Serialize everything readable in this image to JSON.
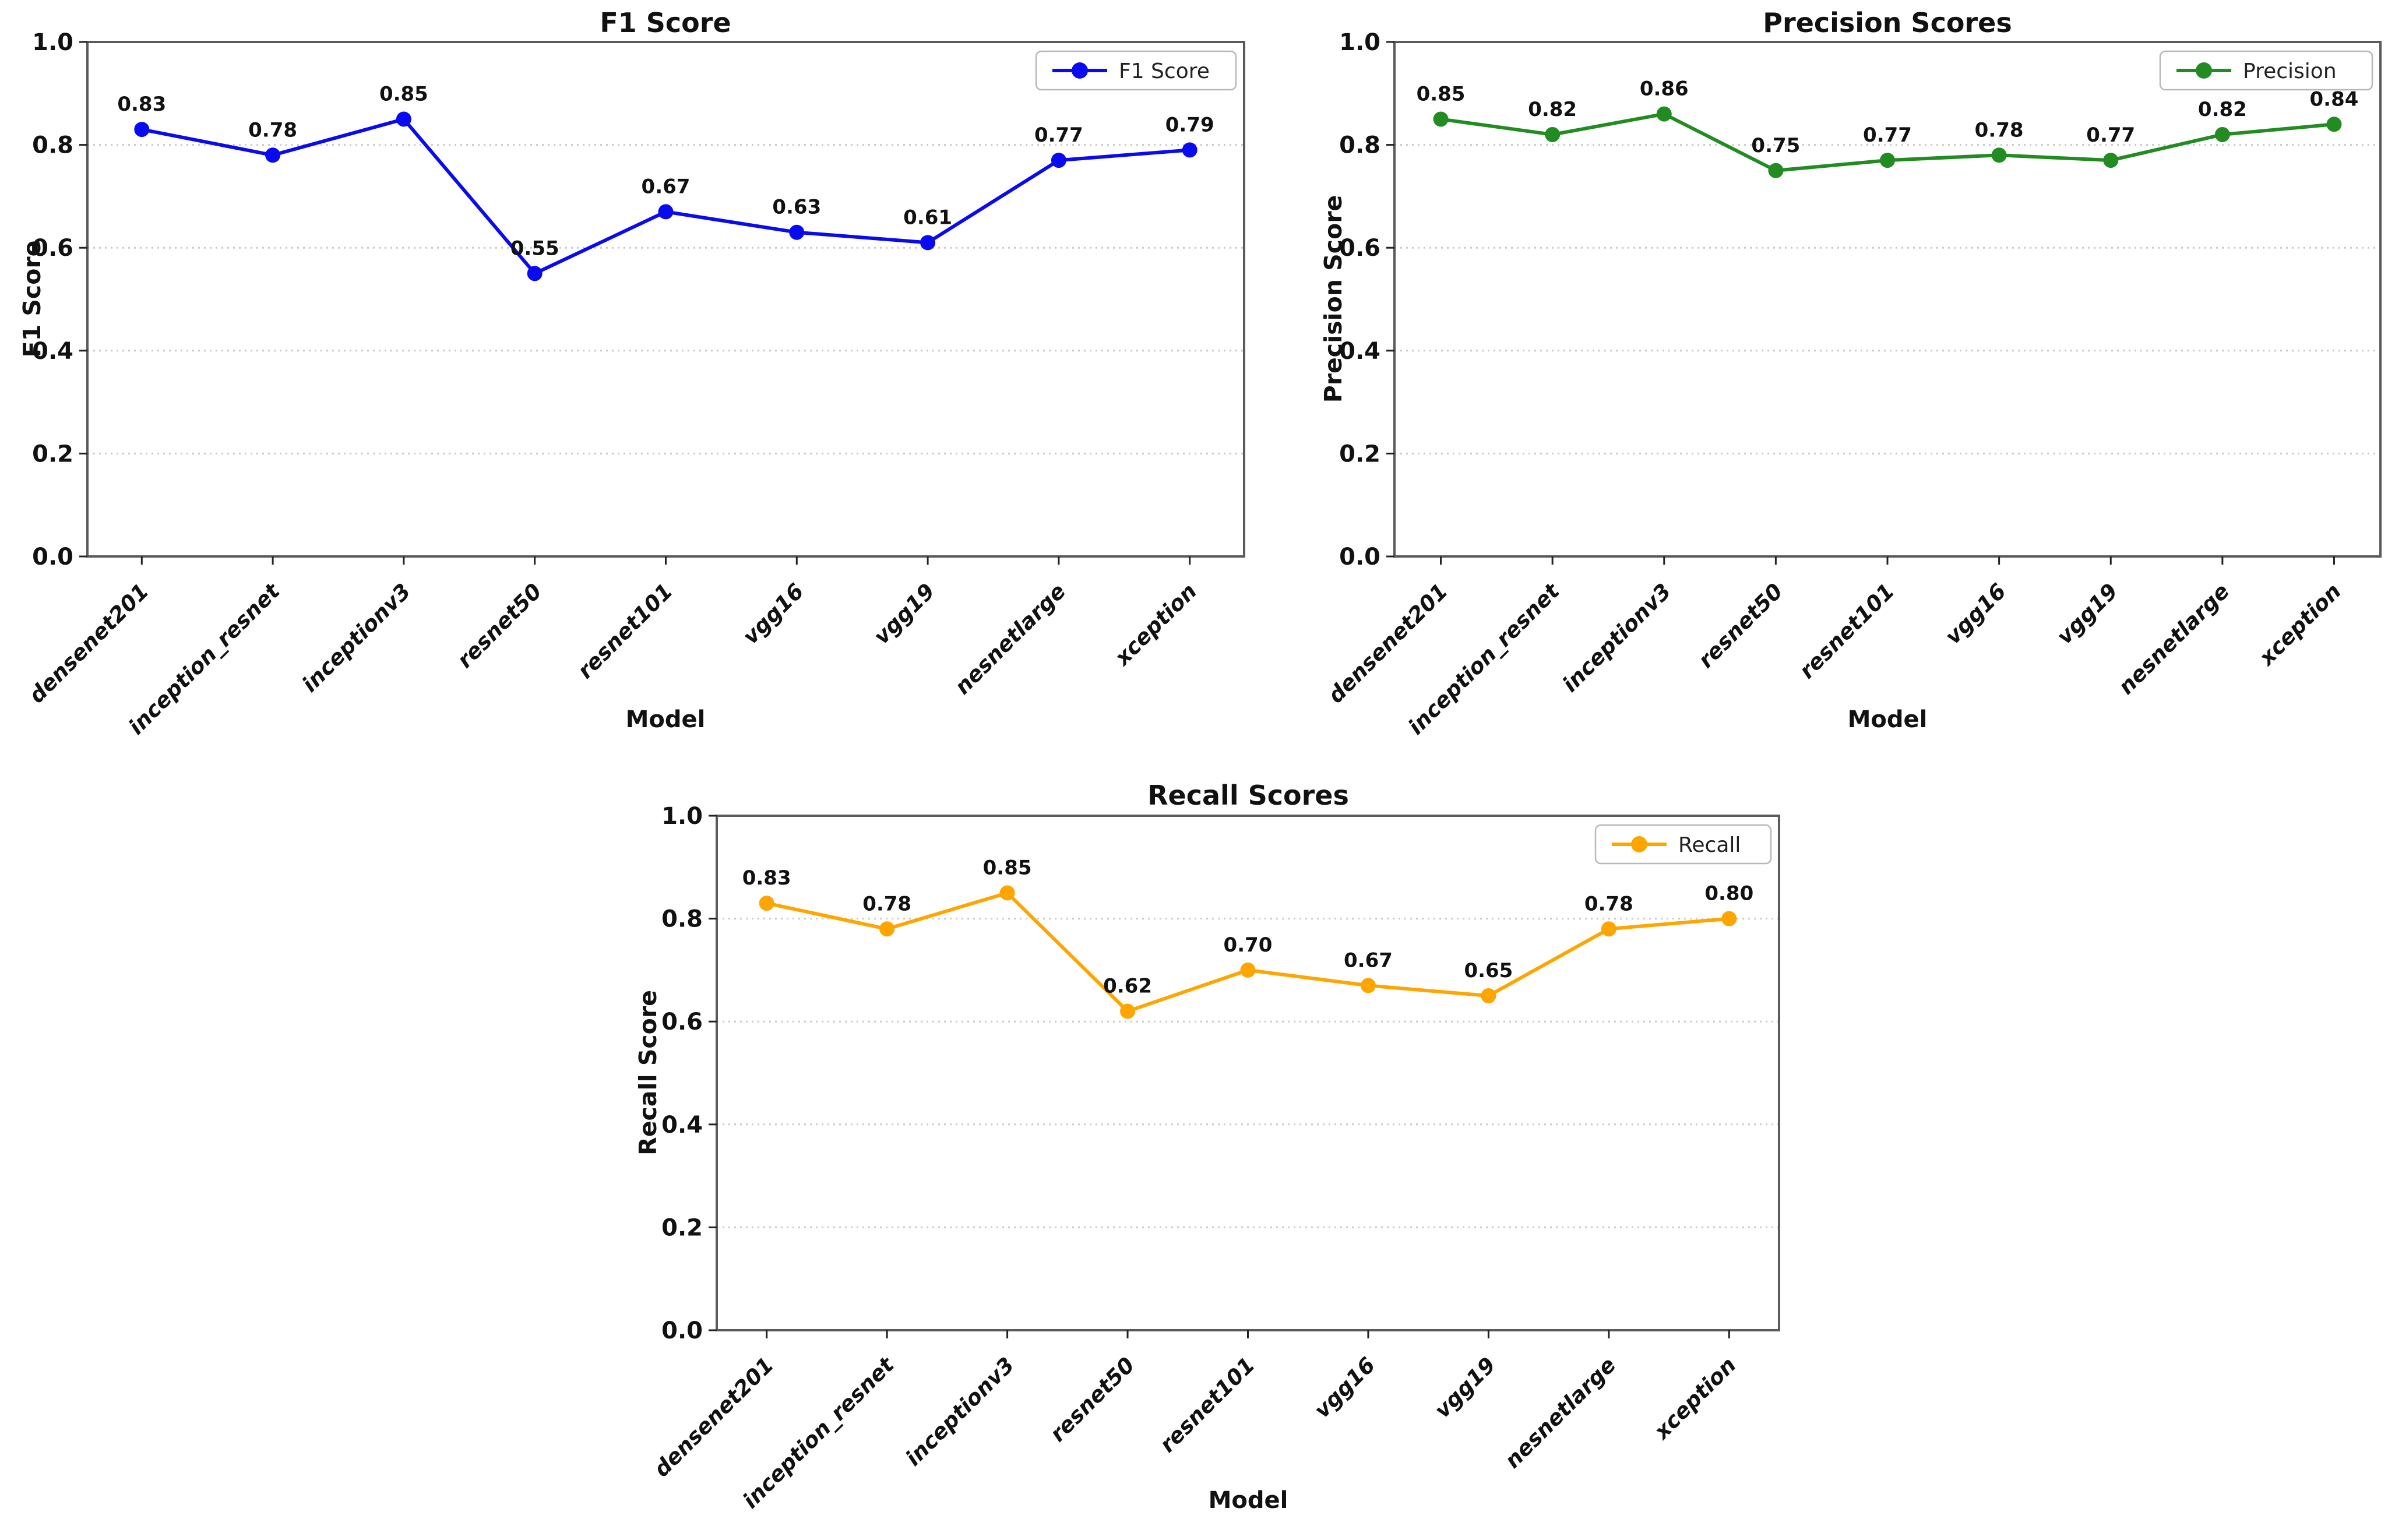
{
  "chart_data": [
    {
      "type": "line",
      "title": "F1 Score",
      "xlabel": "Model",
      "ylabel": "F1 Score",
      "legend_label": "F1 Score",
      "legend_position": "upper right",
      "grid": "horizontal-dotted",
      "marker": "circle",
      "color": "#0a0af0",
      "categories": [
        "densenet201",
        "inception_resnet",
        "inceptionv3",
        "resnet50",
        "resnet101",
        "vgg16",
        "vgg19",
        "nesnetlarge",
        "xception"
      ],
      "values": [
        0.83,
        0.78,
        0.85,
        0.55,
        0.67,
        0.63,
        0.61,
        0.77,
        0.79
      ],
      "value_labels": [
        "0.83",
        "0.78",
        "0.85",
        "0.55",
        "0.67",
        "0.63",
        "0.61",
        "0.77",
        "0.79"
      ],
      "ylim": [
        0.0,
        1.0
      ],
      "yticks": [
        "0.0",
        "0.2",
        "0.4",
        "0.6",
        "0.8",
        "1.0"
      ]
    },
    {
      "type": "line",
      "title": "Precision Scores",
      "xlabel": "Model",
      "ylabel": "Precision Score",
      "legend_label": "Precision",
      "legend_position": "upper right",
      "grid": "horizontal-dotted",
      "marker": "circle",
      "color": "#228B22",
      "categories": [
        "densenet201",
        "inception_resnet",
        "inceptionv3",
        "resnet50",
        "resnet101",
        "vgg16",
        "vgg19",
        "nesnetlarge",
        "xception"
      ],
      "values": [
        0.85,
        0.82,
        0.86,
        0.75,
        0.77,
        0.78,
        0.77,
        0.82,
        0.84
      ],
      "value_labels": [
        "0.85",
        "0.82",
        "0.86",
        "0.75",
        "0.77",
        "0.78",
        "0.77",
        "0.82",
        "0.84"
      ],
      "ylim": [
        0.0,
        1.0
      ],
      "yticks": [
        "0.0",
        "0.2",
        "0.4",
        "0.6",
        "0.8",
        "1.0"
      ]
    },
    {
      "type": "line",
      "title": "Recall Scores",
      "xlabel": "Model",
      "ylabel": "Recall Score",
      "legend_label": "Recall",
      "legend_position": "upper right",
      "grid": "horizontal-dotted",
      "marker": "circle",
      "color": "#FFA500",
      "categories": [
        "densenet201",
        "inception_resnet",
        "inceptionv3",
        "resnet50",
        "resnet101",
        "vgg16",
        "vgg19",
        "nesnetlarge",
        "xception"
      ],
      "values": [
        0.83,
        0.78,
        0.85,
        0.62,
        0.7,
        0.67,
        0.65,
        0.78,
        0.8
      ],
      "value_labels": [
        "0.83",
        "0.78",
        "0.85",
        "0.62",
        "0.70",
        "0.67",
        "0.65",
        "0.78",
        "0.80"
      ],
      "ylim": [
        0.0,
        1.0
      ],
      "yticks": [
        "0.0",
        "0.2",
        "0.4",
        "0.6",
        "0.8",
        "1.0"
      ]
    }
  ],
  "style_colors": {
    "spine": "#5a5a5a",
    "tick": "#222222",
    "gridline": "#c9c9c9",
    "text": "#111111",
    "legend_border": "#b8b8b8",
    "legend_bg": "#ffffff"
  }
}
